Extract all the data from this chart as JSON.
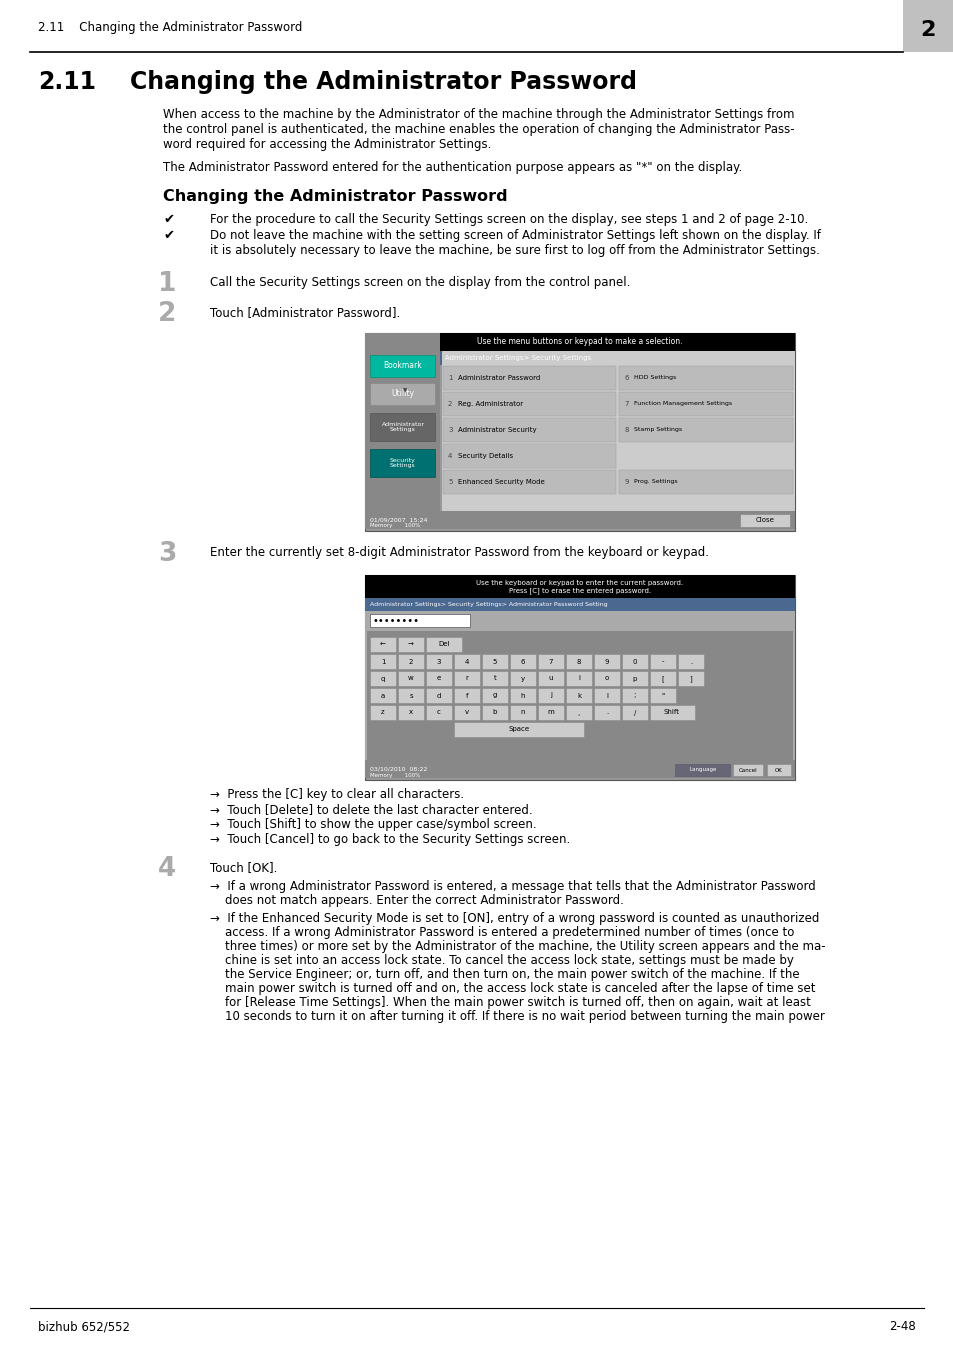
{
  "page_bg": "#ffffff",
  "header_text": "2.11    Changing the Administrator Password",
  "header_chapter_num": "2",
  "chapter_num": "2.11",
  "chapter_title": "Changing the Administrator Password",
  "para1_lines": [
    "When access to the machine by the Administrator of the machine through the Administrator Settings from",
    "the control panel is authenticated, the machine enables the operation of changing the Administrator Pass-",
    "word required for accessing the Administrator Settings."
  ],
  "para2": "The Administrator Password entered for the authentication purpose appears as \"*\" on the display.",
  "subheading": "Changing the Administrator Password",
  "check1": "For the procedure to call the Security Settings screen on the display, see steps 1 and 2 of page 2-10.",
  "check2_lines": [
    "Do not leave the machine with the setting screen of Administrator Settings left shown on the display. If",
    "it is absolutely necessary to leave the machine, be sure first to log off from the Administrator Settings."
  ],
  "step1_num": "1",
  "step1_text": "Call the Security Settings screen on the display from the control panel.",
  "step2_num": "2",
  "step2_text": "Touch [Administrator Password].",
  "step3_num": "3",
  "step3_text": "Enter the currently set 8-digit Administrator Password from the keyboard or keypad.",
  "step4_num": "4",
  "step4_text": "Touch [OK].",
  "arrow1": "→  Press the [C] key to clear all characters.",
  "arrow2": "→  Touch [Delete] to delete the last character entered.",
  "arrow3": "→  Touch [Shift] to show the upper case/symbol screen.",
  "arrow4": "→  Touch [Cancel] to go back to the Security Settings screen.",
  "step4_arrow1_lines": [
    "→  If a wrong Administrator Password is entered, a message that tells that the Administrator Password",
    "    does not match appears. Enter the correct Administrator Password."
  ],
  "step4_arrow2_lines": [
    "→  If the Enhanced Security Mode is set to [ON], entry of a wrong password is counted as unauthorized",
    "    access. If a wrong Administrator Password is entered a predetermined number of times (once to",
    "    three times) or more set by the Administrator of the machine, the Utility screen appears and the ma-",
    "    chine is set into an access lock state. To cancel the access lock state, settings must be made by",
    "    the Service Engineer; or, turn off, and then turn on, the main power switch of the machine. If the",
    "    main power switch is turned off and on, the access lock state is canceled after the lapse of time set",
    "    for [Release Time Settings]. When the main power switch is turned off, then on again, wait at least",
    "    10 seconds to turn it on after turning it off. If there is no wait period between turning the main power"
  ],
  "footer_left": "bizhub 652/552",
  "footer_right": "2-48"
}
